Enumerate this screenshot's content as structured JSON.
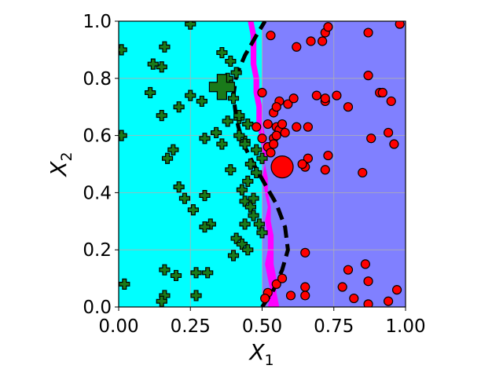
{
  "chart_data": {
    "type": "scatter",
    "title": "",
    "xlabel_main": "X",
    "xlabel_sub": "1",
    "ylabel_main": "X",
    "ylabel_sub": "2",
    "xlim": [
      0,
      1
    ],
    "ylim": [
      0,
      1
    ],
    "xticks": [
      0.0,
      0.25,
      0.5,
      0.75,
      1.0
    ],
    "yticks": [
      0.0,
      0.2,
      0.4,
      0.6,
      0.8,
      1.0
    ],
    "xtick_labels": [
      "0.00",
      "0.25",
      "0.50",
      "0.75",
      "1.00"
    ],
    "ytick_labels": [
      "0.0",
      "0.2",
      "0.4",
      "0.6",
      "0.8",
      "1.0"
    ],
    "grid": true,
    "colors": {
      "region_class0": "#00ffff",
      "region_class1": "#8080ff",
      "region_overlap": "#ff00ff",
      "class0_marker": "#1a7a1a",
      "class1_marker": "#ff0000",
      "boundary": "#000000"
    },
    "regions": [
      {
        "class": "class0",
        "x_range": [
          0.0,
          0.5
        ]
      },
      {
        "class": "class1",
        "x_range": [
          0.5,
          1.0
        ]
      }
    ],
    "overlap_strip": {
      "y": [
        0.0,
        0.05,
        0.1,
        0.15,
        0.2,
        0.25,
        0.3,
        0.35,
        0.4,
        0.45,
        0.5,
        0.55,
        0.6,
        0.65,
        0.7,
        0.75,
        0.8,
        0.85,
        0.9,
        0.95,
        1.0
      ],
      "x_left": [
        0.52,
        0.53,
        0.52,
        0.51,
        0.52,
        0.52,
        0.51,
        0.52,
        0.51,
        0.5,
        0.51,
        0.5,
        0.49,
        0.48,
        0.48,
        0.47,
        0.47,
        0.46,
        0.46,
        0.46,
        0.45
      ],
      "x_right": [
        0.56,
        0.55,
        0.55,
        0.54,
        0.54,
        0.54,
        0.53,
        0.53,
        0.52,
        0.52,
        0.51,
        0.52,
        0.51,
        0.5,
        0.5,
        0.49,
        0.49,
        0.48,
        0.48,
        0.48,
        0.47
      ]
    },
    "boundary_curve": {
      "style": "dashed",
      "x": [
        0.5,
        0.54,
        0.57,
        0.59,
        0.58,
        0.55,
        0.51,
        0.47,
        0.43,
        0.41,
        0.4,
        0.41,
        0.44,
        0.48,
        0.51
      ],
      "y": [
        0.0,
        0.06,
        0.13,
        0.2,
        0.28,
        0.36,
        0.43,
        0.5,
        0.58,
        0.66,
        0.74,
        0.81,
        0.88,
        0.95,
        1.0
      ]
    },
    "series": [
      {
        "marker": "plus",
        "color": "#1a7a1a",
        "x": [
          0.25,
          0.01,
          0.16,
          0.11,
          0.15,
          0.21,
          0.29,
          0.25,
          0.3,
          0.34,
          0.17,
          0.19,
          0.15,
          0.12,
          0.23,
          0.21,
          0.26,
          0.3,
          0.32,
          0.3,
          0.27,
          0.36,
          0.38,
          0.4,
          0.42,
          0.45,
          0.44,
          0.48,
          0.5,
          0.46,
          0.48,
          0.45,
          0.43,
          0.44,
          0.46,
          0.47,
          0.49,
          0.5,
          0.41,
          0.43,
          0.45,
          0.4,
          0.38,
          0.38,
          0.42,
          0.44,
          0.36,
          0.39,
          0.47,
          0.01,
          0.16,
          0.2,
          0.31,
          0.02,
          0.27,
          0.16,
          0.15,
          0.39,
          0.41,
          0.42,
          0.44
        ],
        "y": [
          0.99,
          0.9,
          0.91,
          0.75,
          0.67,
          0.7,
          0.72,
          0.74,
          0.59,
          0.61,
          0.52,
          0.55,
          0.84,
          0.85,
          0.38,
          0.42,
          0.34,
          0.39,
          0.29,
          0.28,
          0.12,
          0.89,
          0.79,
          0.73,
          0.66,
          0.64,
          0.58,
          0.55,
          0.52,
          0.5,
          0.47,
          0.44,
          0.41,
          0.37,
          0.35,
          0.32,
          0.29,
          0.26,
          0.24,
          0.22,
          0.2,
          0.18,
          0.8,
          0.65,
          0.6,
          0.57,
          0.57,
          0.48,
          0.38,
          0.6,
          0.13,
          0.11,
          0.12,
          0.08,
          0.04,
          0.04,
          0.02,
          0.86,
          0.82,
          0.67,
          0.29
        ]
      },
      {
        "marker": "circle",
        "color": "#ff0000",
        "x": [
          0.53,
          0.62,
          0.67,
          0.71,
          0.72,
          0.73,
          0.72,
          0.87,
          0.98,
          0.59,
          0.69,
          0.56,
          0.61,
          0.66,
          0.72,
          0.8,
          0.88,
          0.94,
          0.91,
          0.92,
          0.95,
          0.96,
          0.87,
          0.73,
          0.85,
          0.65,
          0.54,
          0.55,
          0.56,
          0.52,
          0.57,
          0.54,
          0.5,
          0.52,
          0.53,
          0.48,
          0.55,
          0.5,
          0.66,
          0.55,
          0.54,
          0.58,
          0.65,
          0.8,
          0.86,
          0.87,
          0.94,
          0.97,
          0.78,
          0.82,
          0.65,
          0.6,
          0.52,
          0.51,
          0.55,
          0.65,
          0.57,
          0.62,
          0.72,
          0.87,
          0.64,
          0.76
        ],
        "y": [
          0.95,
          0.91,
          0.93,
          0.93,
          0.96,
          0.98,
          0.72,
          0.96,
          0.99,
          0.71,
          0.74,
          0.72,
          0.73,
          0.63,
          0.73,
          0.7,
          0.59,
          0.61,
          0.75,
          0.75,
          0.72,
          0.57,
          0.81,
          0.53,
          0.47,
          0.49,
          0.68,
          0.63,
          0.62,
          0.64,
          0.64,
          0.59,
          0.59,
          0.56,
          0.54,
          0.63,
          0.7,
          0.75,
          0.52,
          0.6,
          0.57,
          0.61,
          0.19,
          0.13,
          0.15,
          0.09,
          0.02,
          0.06,
          0.07,
          0.03,
          0.04,
          0.04,
          0.05,
          0.03,
          0.08,
          0.07,
          0.1,
          0.63,
          0.48,
          0.01,
          0.5,
          0.74
        ]
      }
    ],
    "highlight_points": [
      {
        "marker": "plus",
        "color": "#1a7a1a",
        "x": 0.36,
        "y": 0.77
      },
      {
        "marker": "circle",
        "color": "#ff0000",
        "x": 0.57,
        "y": 0.49
      }
    ]
  }
}
